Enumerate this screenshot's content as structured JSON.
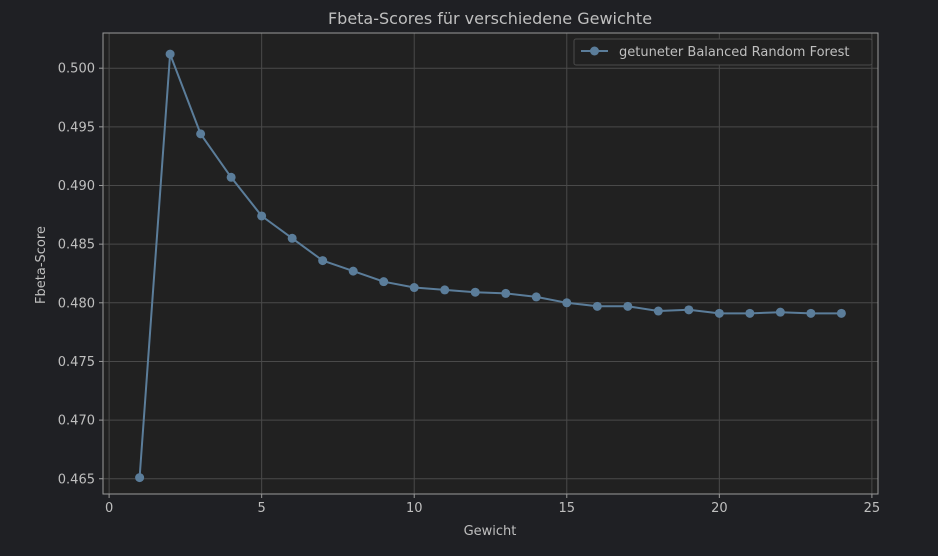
{
  "colors": {
    "figure_bg": "#1f2024",
    "axes_bg": "#212121",
    "grid": "#4a4a4a",
    "spine": "#9a9a9a",
    "text": "#bfbfbf",
    "series": "#5b7d9a",
    "legend_bg": "#212121",
    "legend_border": "#4a4a4a"
  },
  "chart_data": {
    "type": "line",
    "title": "Fbeta-Scores für verschiedene Gewichte",
    "xlabel": "Gewicht",
    "ylabel": "Fbeta-Score",
    "xlim": [
      -0.2,
      25.2
    ],
    "ylim": [
      0.4637,
      0.503
    ],
    "xticks": [
      0,
      5,
      10,
      15,
      20,
      25
    ],
    "xtick_labels": [
      "0",
      "5",
      "10",
      "15",
      "20",
      "25"
    ],
    "yticks": [
      0.465,
      0.47,
      0.475,
      0.48,
      0.485,
      0.49,
      0.495,
      0.5
    ],
    "ytick_labels": [
      "0.465",
      "0.470",
      "0.475",
      "0.480",
      "0.485",
      "0.490",
      "0.495",
      "0.500"
    ],
    "grid": true,
    "legend_position": "top-right",
    "series": [
      {
        "name": "getuneter Balanced Random Forest",
        "marker": "circle",
        "x": [
          1,
          2,
          3,
          4,
          5,
          6,
          7,
          8,
          9,
          10,
          11,
          12,
          13,
          14,
          15,
          16,
          17,
          18,
          19,
          20,
          21,
          22,
          23,
          24
        ],
        "y": [
          0.4651,
          0.5012,
          0.4944,
          0.4907,
          0.4874,
          0.4855,
          0.4836,
          0.4827,
          0.4818,
          0.4813,
          0.4811,
          0.4809,
          0.4808,
          0.4805,
          0.48,
          0.4797,
          0.4797,
          0.4793,
          0.4794,
          0.4791,
          0.4791,
          0.4792,
          0.4791,
          0.4791
        ]
      }
    ]
  }
}
